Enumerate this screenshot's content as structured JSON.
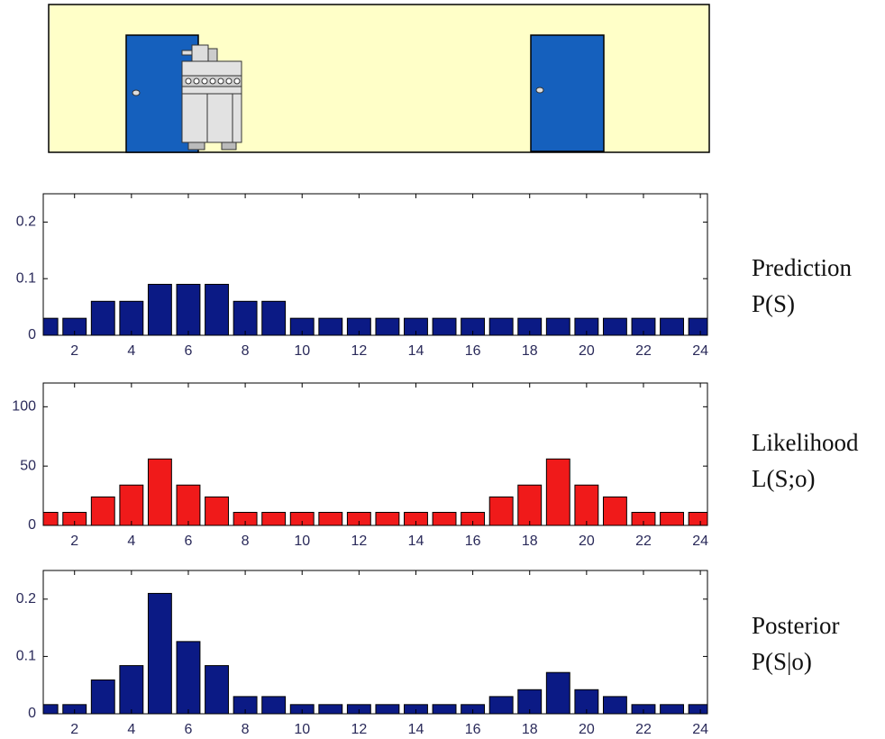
{
  "chart_data": [
    {
      "type": "bar",
      "title": "Prediction",
      "subtitle": "P(S)",
      "x": [
        1,
        2,
        3,
        4,
        5,
        6,
        7,
        8,
        9,
        10,
        11,
        12,
        13,
        14,
        15,
        16,
        17,
        18,
        19,
        20,
        21,
        22,
        23,
        24
      ],
      "values": [
        0.03,
        0.03,
        0.06,
        0.06,
        0.09,
        0.09,
        0.09,
        0.06,
        0.06,
        0.03,
        0.03,
        0.03,
        0.03,
        0.03,
        0.03,
        0.03,
        0.03,
        0.03,
        0.03,
        0.03,
        0.03,
        0.03,
        0.03,
        0.03
      ],
      "color": "#0b1a85",
      "xlim": [
        0.9,
        24.25
      ],
      "xticks": [
        2,
        4,
        6,
        8,
        10,
        12,
        14,
        16,
        18,
        20,
        22,
        24
      ],
      "ylim": [
        0,
        0.25
      ],
      "yticks": [
        0,
        0.1,
        0.2
      ]
    },
    {
      "type": "bar",
      "title": "Likelihood",
      "subtitle": "L(S;o)",
      "x": [
        1,
        2,
        3,
        4,
        5,
        6,
        7,
        8,
        9,
        10,
        11,
        12,
        13,
        14,
        15,
        16,
        17,
        18,
        19,
        20,
        21,
        22,
        23,
        24
      ],
      "values": [
        11,
        11,
        24,
        34,
        56,
        34,
        24,
        11,
        11,
        11,
        11,
        11,
        11,
        11,
        11,
        11,
        24,
        34,
        56,
        34,
        24,
        11,
        11,
        11
      ],
      "color": "#f01a1a",
      "xlim": [
        0.9,
        24.25
      ],
      "xticks": [
        2,
        4,
        6,
        8,
        10,
        12,
        14,
        16,
        18,
        20,
        22,
        24
      ],
      "ylim": [
        0,
        120
      ],
      "yticks": [
        0,
        50,
        100
      ]
    },
    {
      "type": "bar",
      "title": "Posterior",
      "subtitle": "P(S|o)",
      "x": [
        1,
        2,
        3,
        4,
        5,
        6,
        7,
        8,
        9,
        10,
        11,
        12,
        13,
        14,
        15,
        16,
        17,
        18,
        19,
        20,
        21,
        22,
        23,
        24
      ],
      "values": [
        0.016,
        0.016,
        0.059,
        0.084,
        0.21,
        0.126,
        0.084,
        0.03,
        0.03,
        0.016,
        0.016,
        0.016,
        0.016,
        0.016,
        0.016,
        0.016,
        0.03,
        0.042,
        0.072,
        0.042,
        0.03,
        0.016,
        0.016,
        0.016
      ],
      "color": "#0b1a85",
      "xlim": [
        0.9,
        24.25
      ],
      "xticks": [
        2,
        4,
        6,
        8,
        10,
        12,
        14,
        16,
        18,
        20,
        22,
        24
      ],
      "ylim": [
        0,
        0.25
      ],
      "yticks": [
        0,
        0.1,
        0.2
      ]
    }
  ]
}
